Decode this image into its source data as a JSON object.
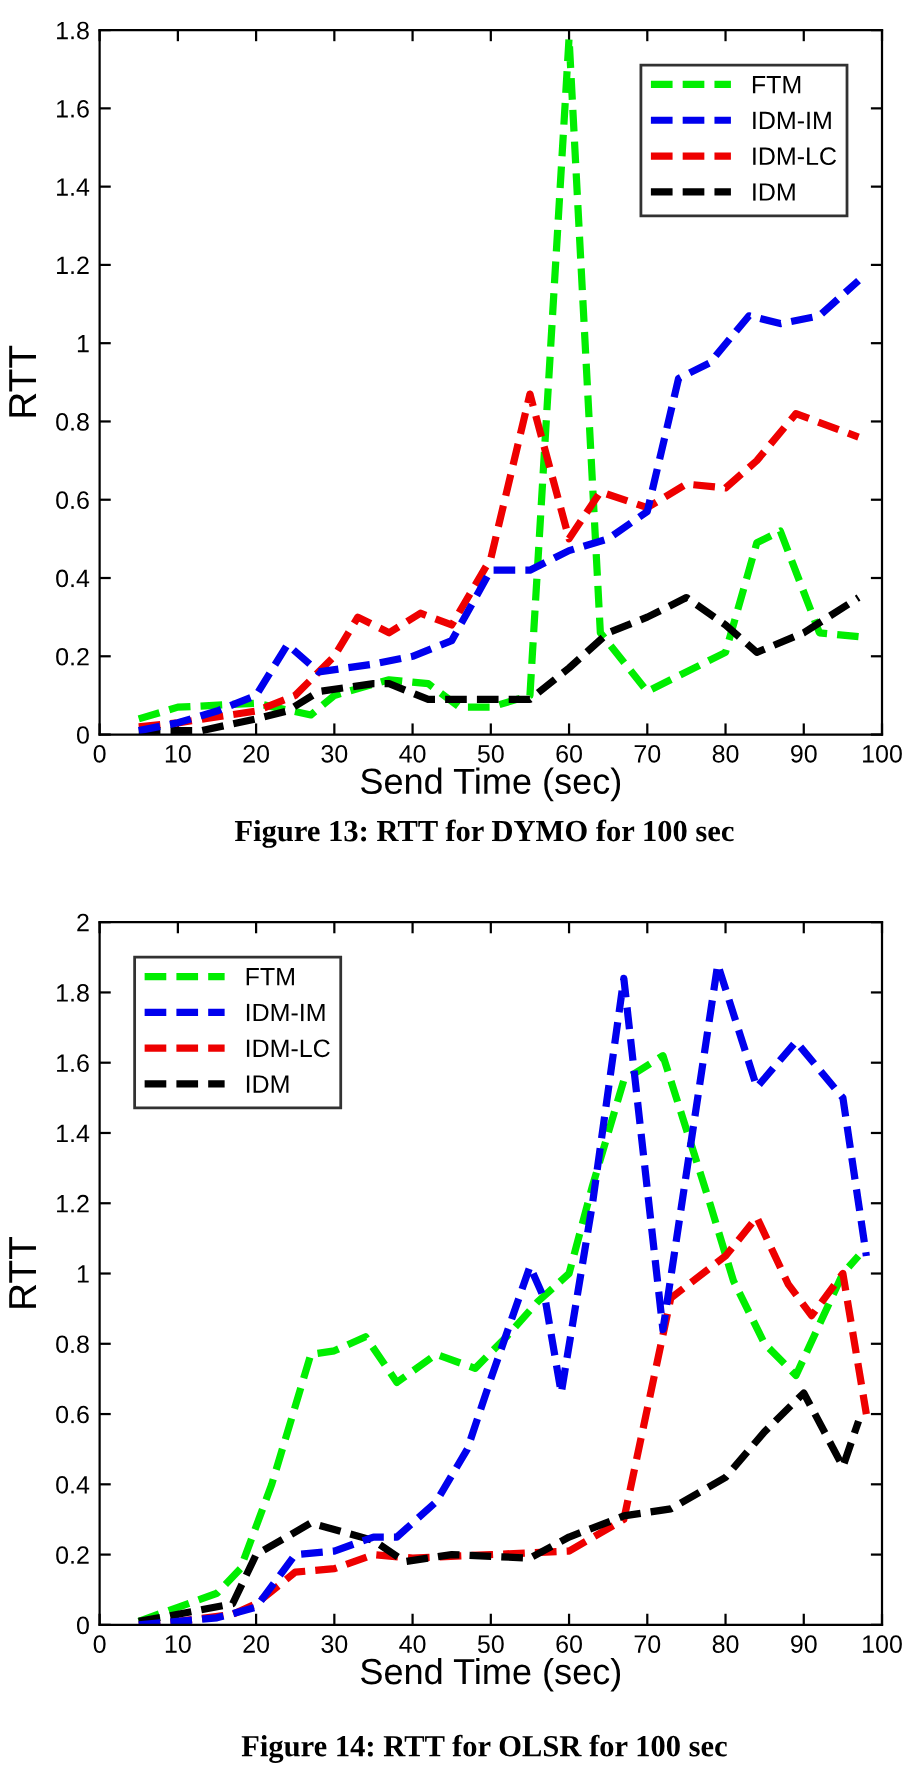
{
  "chart_data": [
    {
      "type": "line",
      "xlabel": "Send Time (sec)",
      "ylabel": "RTT",
      "annotations": [
        "Figure 13: RTT for DYMO for 100 sec"
      ],
      "xlim": [
        0,
        100
      ],
      "xticks": [
        0,
        10,
        20,
        30,
        40,
        50,
        60,
        70,
        80,
        90,
        100
      ],
      "ylim": [
        0,
        1.8
      ],
      "yticks": [
        0,
        0.2,
        0.4,
        0.6,
        0.8,
        1,
        1.2,
        1.4,
        1.6,
        1.8
      ],
      "grid": false,
      "legend": "top right",
      "line_style": "dashed",
      "marker": "none",
      "series": [
        {
          "name": "FTM",
          "color": "#00ee00",
          "x": [
            5,
            10,
            20,
            27,
            30,
            37,
            42,
            46,
            50,
            55,
            60,
            64,
            70,
            80,
            84,
            87,
            92,
            97
          ],
          "values": [
            0.04,
            0.07,
            0.08,
            0.05,
            0.1,
            0.14,
            0.13,
            0.07,
            0.07,
            0.1,
            1.78,
            0.26,
            0.11,
            0.21,
            0.49,
            0.52,
            0.26,
            0.25
          ]
        },
        {
          "name": "IDM-IM",
          "color": "#0000ee",
          "x": [
            5,
            10,
            15,
            20,
            24,
            28,
            35,
            40,
            45,
            50,
            55,
            60,
            65,
            70,
            74,
            78,
            83,
            87,
            92,
            97
          ],
          "values": [
            0.01,
            0.03,
            0.06,
            0.1,
            0.23,
            0.16,
            0.18,
            0.2,
            0.24,
            0.42,
            0.42,
            0.47,
            0.5,
            0.57,
            0.91,
            0.95,
            1.07,
            1.05,
            1.07,
            1.16
          ]
        },
        {
          "name": "IDM-LC",
          "color": "#ee0000",
          "x": [
            5,
            10,
            20,
            25,
            30,
            33,
            37,
            41,
            45,
            50,
            55,
            60,
            64,
            70,
            75,
            80,
            84,
            89,
            97
          ],
          "values": [
            0.02,
            0.03,
            0.06,
            0.1,
            0.2,
            0.3,
            0.26,
            0.31,
            0.28,
            0.45,
            0.87,
            0.5,
            0.62,
            0.58,
            0.64,
            0.63,
            0.7,
            0.82,
            0.76
          ]
        },
        {
          "name": "IDM",
          "color": "#000000",
          "x": [
            5,
            13,
            20,
            24,
            28,
            35,
            37,
            42,
            50,
            55,
            60,
            65,
            70,
            75,
            80,
            84,
            90,
            97
          ],
          "values": [
            0.01,
            0.01,
            0.04,
            0.06,
            0.11,
            0.13,
            0.13,
            0.09,
            0.09,
            0.09,
            0.17,
            0.26,
            0.3,
            0.35,
            0.28,
            0.21,
            0.26,
            0.35
          ]
        }
      ]
    },
    {
      "type": "line",
      "xlabel": "Send Time (sec)",
      "ylabel": "RTT",
      "annotations": [
        "Figure 14: RTT for OLSR for 100 sec"
      ],
      "xlim": [
        0,
        100
      ],
      "xticks": [
        0,
        10,
        20,
        30,
        40,
        50,
        60,
        70,
        80,
        90,
        100
      ],
      "ylim": [
        0,
        2
      ],
      "yticks": [
        0,
        0.2,
        0.4,
        0.6,
        0.8,
        1,
        1.2,
        1.4,
        1.6,
        1.8,
        2
      ],
      "grid": false,
      "legend": "top left",
      "line_style": "dashed",
      "marker": "none",
      "series": [
        {
          "name": "FTM",
          "color": "#00ee00",
          "x": [
            5,
            10,
            15,
            18,
            22,
            27,
            30,
            34,
            38,
            43,
            48,
            52,
            56,
            60,
            63,
            67,
            72,
            78,
            81,
            85,
            89,
            95,
            97
          ],
          "values": [
            0.01,
            0.05,
            0.09,
            0.16,
            0.4,
            0.77,
            0.78,
            0.82,
            0.69,
            0.77,
            0.73,
            0.82,
            0.92,
            1.0,
            1.25,
            1.55,
            1.62,
            1.2,
            0.98,
            0.8,
            0.71,
            1.0,
            1.05
          ]
        },
        {
          "name": "IDM-IM",
          "color": "#0000ee",
          "x": [
            5,
            10,
            15,
            20,
            25,
            30,
            35,
            38,
            43,
            47,
            50,
            55,
            57,
            59,
            63,
            67,
            72,
            79,
            84,
            89,
            95,
            98
          ],
          "values": [
            0.0,
            0.01,
            0.02,
            0.05,
            0.2,
            0.21,
            0.25,
            0.25,
            0.35,
            0.5,
            0.7,
            1.02,
            0.92,
            0.66,
            1.2,
            1.84,
            0.84,
            1.88,
            1.53,
            1.66,
            1.5,
            1.05
          ]
        },
        {
          "name": "IDM-LC",
          "color": "#ee0000",
          "x": [
            5,
            10,
            17,
            20,
            25,
            30,
            35,
            40,
            50,
            60,
            67,
            73,
            80,
            84,
            88,
            91,
            95,
            98
          ],
          "values": [
            0.0,
            0.01,
            0.03,
            0.06,
            0.15,
            0.16,
            0.2,
            0.19,
            0.2,
            0.21,
            0.3,
            0.93,
            1.05,
            1.16,
            0.97,
            0.88,
            1.0,
            0.6
          ]
        },
        {
          "name": "IDM",
          "color": "#000000",
          "x": [
            5,
            10,
            17,
            20,
            27,
            35,
            39,
            45,
            55,
            60,
            67,
            73,
            80,
            85,
            90,
            95,
            97
          ],
          "values": [
            0.01,
            0.03,
            0.06,
            0.2,
            0.29,
            0.24,
            0.18,
            0.2,
            0.19,
            0.25,
            0.31,
            0.33,
            0.42,
            0.55,
            0.66,
            0.45,
            0.58
          ]
        }
      ]
    }
  ]
}
